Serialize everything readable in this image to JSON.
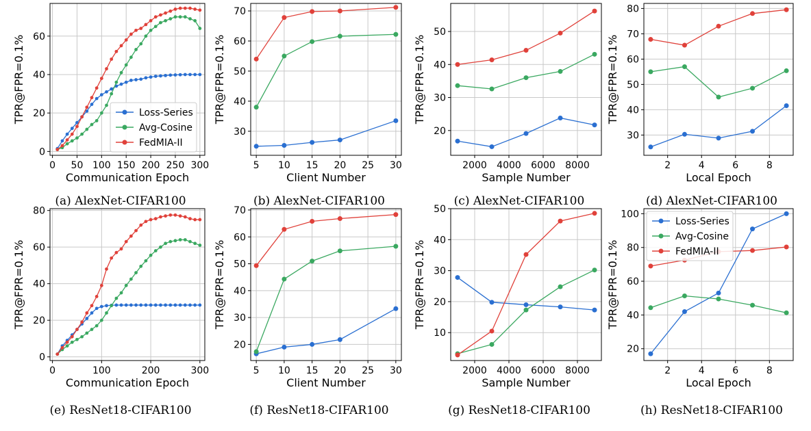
{
  "colors": {
    "loss_series": "#2a6fd1",
    "avg_cosine": "#3aa860",
    "fedmia": "#e0413a",
    "grid": "#c8c8c8"
  },
  "chart_data": [
    {
      "type": "line",
      "caption": "(a) AlexNet-CIFAR100",
      "xlabel": "Communication Epoch",
      "ylabel": "TPR@FPR=0.1%",
      "xlim": [
        -5,
        310
      ],
      "ylim": [
        -2,
        77
      ],
      "xticks": [
        0,
        50,
        100,
        150,
        200,
        250,
        300
      ],
      "yticks": [
        0,
        20,
        40,
        60
      ],
      "legend": "center-right",
      "grid": true,
      "series": [
        {
          "name": "Loss-Series",
          "color": "#2a6fd1",
          "x": [
            10,
            20,
            30,
            40,
            50,
            60,
            70,
            80,
            90,
            100,
            110,
            120,
            130,
            140,
            150,
            160,
            170,
            180,
            190,
            200,
            210,
            220,
            230,
            240,
            250,
            260,
            270,
            280,
            290,
            300
          ],
          "y": [
            1.5,
            5.5,
            9,
            12,
            15,
            18,
            21,
            24.5,
            27.5,
            29.5,
            31,
            32.5,
            34,
            35,
            36,
            37,
            37.3,
            37.6,
            38.3,
            38.7,
            39.1,
            39.3,
            39.5,
            39.7,
            39.8,
            39.9,
            40,
            40,
            40,
            40
          ]
        },
        {
          "name": "Avg-Cosine",
          "color": "#3aa860",
          "x": [
            10,
            20,
            30,
            40,
            50,
            60,
            70,
            80,
            90,
            100,
            110,
            120,
            130,
            140,
            150,
            160,
            170,
            180,
            190,
            200,
            210,
            220,
            230,
            240,
            250,
            260,
            270,
            280,
            290,
            300
          ],
          "y": [
            1,
            2,
            4,
            5.5,
            7,
            9,
            11.5,
            14,
            16,
            20,
            24,
            30,
            36,
            41,
            45,
            49,
            53,
            56,
            60,
            63,
            65,
            67,
            68,
            69,
            70,
            70,
            70,
            69,
            68,
            64
          ]
        },
        {
          "name": "FedMIA-II",
          "color": "#e0413a",
          "x": [
            10,
            20,
            30,
            40,
            50,
            60,
            70,
            80,
            90,
            100,
            110,
            120,
            130,
            140,
            150,
            160,
            170,
            180,
            190,
            200,
            210,
            220,
            230,
            240,
            250,
            260,
            270,
            280,
            290,
            300
          ],
          "y": [
            1,
            3,
            6,
            9,
            13,
            18,
            23,
            28,
            33,
            38,
            43,
            48,
            52,
            55,
            58,
            61,
            63,
            64,
            66,
            68,
            70,
            71,
            72,
            73,
            74,
            74.5,
            74.5,
            74.5,
            74,
            73.5
          ]
        }
      ]
    },
    {
      "type": "line",
      "caption": "(b) AlexNet-CIFAR100",
      "xlabel": "Client Number",
      "ylabel": "TPR@FPR=0.1%",
      "xlim": [
        4,
        31
      ],
      "ylim": [
        22,
        72.5
      ],
      "xticks": [
        5,
        10,
        15,
        20,
        25,
        30
      ],
      "yticks": [
        30,
        40,
        50,
        60,
        70
      ],
      "grid": true,
      "series": [
        {
          "name": "Loss-Series",
          "color": "#2a6fd1",
          "x": [
            5,
            10,
            15,
            20,
            30
          ],
          "y": [
            25,
            25.3,
            26.3,
            27.1,
            33.5
          ]
        },
        {
          "name": "Avg-Cosine",
          "color": "#3aa860",
          "x": [
            5,
            10,
            15,
            20,
            30
          ],
          "y": [
            38,
            55,
            59.8,
            61.6,
            62.2
          ]
        },
        {
          "name": "FedMIA-II",
          "color": "#e0413a",
          "x": [
            5,
            10,
            15,
            20,
            30
          ],
          "y": [
            54,
            67.8,
            69.8,
            70,
            71.2
          ]
        }
      ]
    },
    {
      "type": "line",
      "caption": "(c) AlexNet-CIFAR100",
      "xlabel": "Sample Number",
      "ylabel": "TPR@FPR=0.1%",
      "xlim": [
        600,
        9400
      ],
      "ylim": [
        12.5,
        58.5
      ],
      "xticks": [
        2000,
        4000,
        6000,
        8000
      ],
      "yticks": [
        20,
        30,
        40,
        50
      ],
      "grid": true,
      "series": [
        {
          "name": "Loss-Series",
          "color": "#2a6fd1",
          "x": [
            1000,
            3000,
            5000,
            7000,
            9000
          ],
          "y": [
            16.8,
            15.1,
            19.1,
            23.8,
            21.7
          ]
        },
        {
          "name": "Avg-Cosine",
          "color": "#3aa860",
          "x": [
            1000,
            3000,
            5000,
            7000,
            9000
          ],
          "y": [
            33.6,
            32.6,
            36,
            37.9,
            43.1
          ]
        },
        {
          "name": "FedMIA-II",
          "color": "#e0413a",
          "x": [
            1000,
            3000,
            5000,
            7000,
            9000
          ],
          "y": [
            40,
            41.4,
            44.3,
            49.5,
            56.2
          ]
        }
      ]
    },
    {
      "type": "line",
      "caption": "(d) AlexNet-CIFAR100",
      "xlabel": "Local Epoch",
      "ylabel": "TPR@FPR=0.1%",
      "xlim": [
        0.6,
        9.4
      ],
      "ylim": [
        22,
        82
      ],
      "xticks": [
        2,
        4,
        6,
        8
      ],
      "yticks": [
        30,
        40,
        50,
        60,
        70,
        80
      ],
      "grid": true,
      "series": [
        {
          "name": "Loss-Series",
          "color": "#2a6fd1",
          "x": [
            1,
            3,
            5,
            7,
            9
          ],
          "y": [
            25.3,
            30.3,
            28.8,
            31.5,
            41.6
          ]
        },
        {
          "name": "Avg-Cosine",
          "color": "#3aa860",
          "x": [
            1,
            3,
            5,
            7,
            9
          ],
          "y": [
            55,
            57,
            45,
            48.5,
            55.4
          ]
        },
        {
          "name": "FedMIA-II",
          "color": "#e0413a",
          "x": [
            1,
            3,
            5,
            7,
            9
          ],
          "y": [
            67.8,
            65.5,
            73,
            78,
            79.5
          ]
        }
      ]
    },
    {
      "type": "line",
      "caption": "(e) ResNet18-CIFAR100",
      "xlabel": "Communication Epoch",
      "ylabel": "TPR@FPR=0.1%",
      "xlim": [
        -5,
        310
      ],
      "ylim": [
        -2,
        81
      ],
      "xticks": [
        0,
        100,
        200,
        300
      ],
      "yticks": [
        0,
        20,
        40,
        60,
        80
      ],
      "grid": true,
      "series": [
        {
          "name": "Loss-Series",
          "color": "#2a6fd1",
          "x": [
            10,
            20,
            30,
            40,
            50,
            60,
            70,
            80,
            90,
            100,
            110,
            120,
            130,
            140,
            150,
            160,
            170,
            180,
            190,
            200,
            210,
            220,
            230,
            240,
            250,
            260,
            270,
            280,
            290,
            300
          ],
          "y": [
            1.5,
            6,
            9,
            12,
            15,
            18,
            21,
            24,
            26.5,
            27.5,
            28,
            28.2,
            28.3,
            28.3,
            28.3,
            28.3,
            28.3,
            28.3,
            28.3,
            28.3,
            28.3,
            28.3,
            28.3,
            28.3,
            28.3,
            28.3,
            28.3,
            28.3,
            28.3,
            28.3
          ]
        },
        {
          "name": "Avg-Cosine",
          "color": "#3aa860",
          "x": [
            10,
            20,
            30,
            40,
            50,
            60,
            70,
            80,
            90,
            100,
            110,
            120,
            130,
            140,
            150,
            160,
            170,
            180,
            190,
            200,
            210,
            220,
            230,
            240,
            250,
            260,
            270,
            280,
            290,
            300
          ],
          "y": [
            1.5,
            4,
            6,
            8,
            9.5,
            11,
            13,
            15,
            17,
            20,
            24,
            28,
            32,
            35,
            39,
            42.5,
            46,
            49.5,
            52.5,
            55.5,
            58,
            60,
            62,
            63,
            63.5,
            64,
            64,
            63,
            62,
            61
          ]
        },
        {
          "name": "FedMIA-II",
          "color": "#e0413a",
          "x": [
            10,
            20,
            30,
            40,
            50,
            60,
            70,
            80,
            90,
            100,
            110,
            120,
            130,
            140,
            150,
            160,
            170,
            180,
            190,
            200,
            210,
            220,
            230,
            240,
            250,
            260,
            270,
            280,
            290,
            300
          ],
          "y": [
            1.5,
            5,
            8,
            11,
            15,
            19,
            24,
            28,
            33,
            39,
            48,
            54,
            57,
            59,
            63,
            66,
            69,
            72,
            74,
            75,
            75.5,
            76.5,
            77,
            77.5,
            77.5,
            77,
            76.5,
            75.5,
            75,
            75
          ]
        }
      ]
    },
    {
      "type": "line",
      "caption": "(f) ResNet18-CIFAR100",
      "xlabel": "Client Number",
      "ylabel": "TPR@FPR=0.1%",
      "xlim": [
        4,
        31
      ],
      "ylim": [
        14,
        70.5
      ],
      "xticks": [
        5,
        10,
        15,
        20,
        25,
        30
      ],
      "yticks": [
        20,
        30,
        40,
        50,
        60,
        70
      ],
      "grid": true,
      "series": [
        {
          "name": "Loss-Series",
          "color": "#2a6fd1",
          "x": [
            5,
            10,
            15,
            20,
            30
          ],
          "y": [
            16.5,
            19,
            20,
            21.8,
            33.3
          ]
        },
        {
          "name": "Avg-Cosine",
          "color": "#3aa860",
          "x": [
            5,
            10,
            15,
            20,
            30
          ],
          "y": [
            17.3,
            44.3,
            51,
            54.8,
            56.5
          ]
        },
        {
          "name": "FedMIA-II",
          "color": "#e0413a",
          "x": [
            5,
            10,
            15,
            20,
            30
          ],
          "y": [
            49.3,
            62.8,
            65.8,
            66.8,
            68.3
          ]
        }
      ]
    },
    {
      "type": "line",
      "caption": "(g) ResNet18-CIFAR100",
      "xlabel": "Sample Number",
      "ylabel": "TPR@FPR=0.1%",
      "xlim": [
        600,
        9400
      ],
      "ylim": [
        1,
        50
      ],
      "xticks": [
        2000,
        4000,
        6000,
        8000
      ],
      "yticks": [
        10,
        20,
        30,
        40,
        50
      ],
      "grid": true,
      "series": [
        {
          "name": "Loss-Series",
          "color": "#2a6fd1",
          "x": [
            1000,
            3000,
            5000,
            7000,
            9000
          ],
          "y": [
            27.8,
            19.8,
            19,
            18.3,
            17.3
          ]
        },
        {
          "name": "Avg-Cosine",
          "color": "#3aa860",
          "x": [
            1000,
            3000,
            5000,
            7000,
            9000
          ],
          "y": [
            3.2,
            6.2,
            17.3,
            24.8,
            30.2
          ]
        },
        {
          "name": "FedMIA-II",
          "color": "#e0413a",
          "x": [
            1000,
            3000,
            5000,
            7000,
            9000
          ],
          "y": [
            2.8,
            10.5,
            35.2,
            46,
            48.5
          ]
        }
      ]
    },
    {
      "type": "line",
      "caption": "(h) ResNet18-CIFAR100",
      "xlabel": "Local Epoch",
      "ylabel": "TPR@FPR=0.1%",
      "xlim": [
        0.6,
        9.4
      ],
      "ylim": [
        13,
        103
      ],
      "xticks": [
        2,
        4,
        6,
        8
      ],
      "yticks": [
        20,
        40,
        60,
        80,
        100
      ],
      "legend": "upper-left",
      "grid": true,
      "series": [
        {
          "name": "Loss-Series",
          "color": "#2a6fd1",
          "x": [
            1,
            3,
            5,
            7,
            9
          ],
          "y": [
            17,
            42,
            53,
            91,
            100
          ]
        },
        {
          "name": "Avg-Cosine",
          "color": "#3aa860",
          "x": [
            1,
            3,
            5,
            7,
            9
          ],
          "y": [
            44.3,
            51.3,
            49.5,
            45.8,
            41.3
          ]
        },
        {
          "name": "FedMIA-II",
          "color": "#e0413a",
          "x": [
            1,
            3,
            5,
            7,
            9
          ],
          "y": [
            69,
            72.5,
            77.5,
            78.2,
            80.3
          ]
        }
      ]
    }
  ]
}
